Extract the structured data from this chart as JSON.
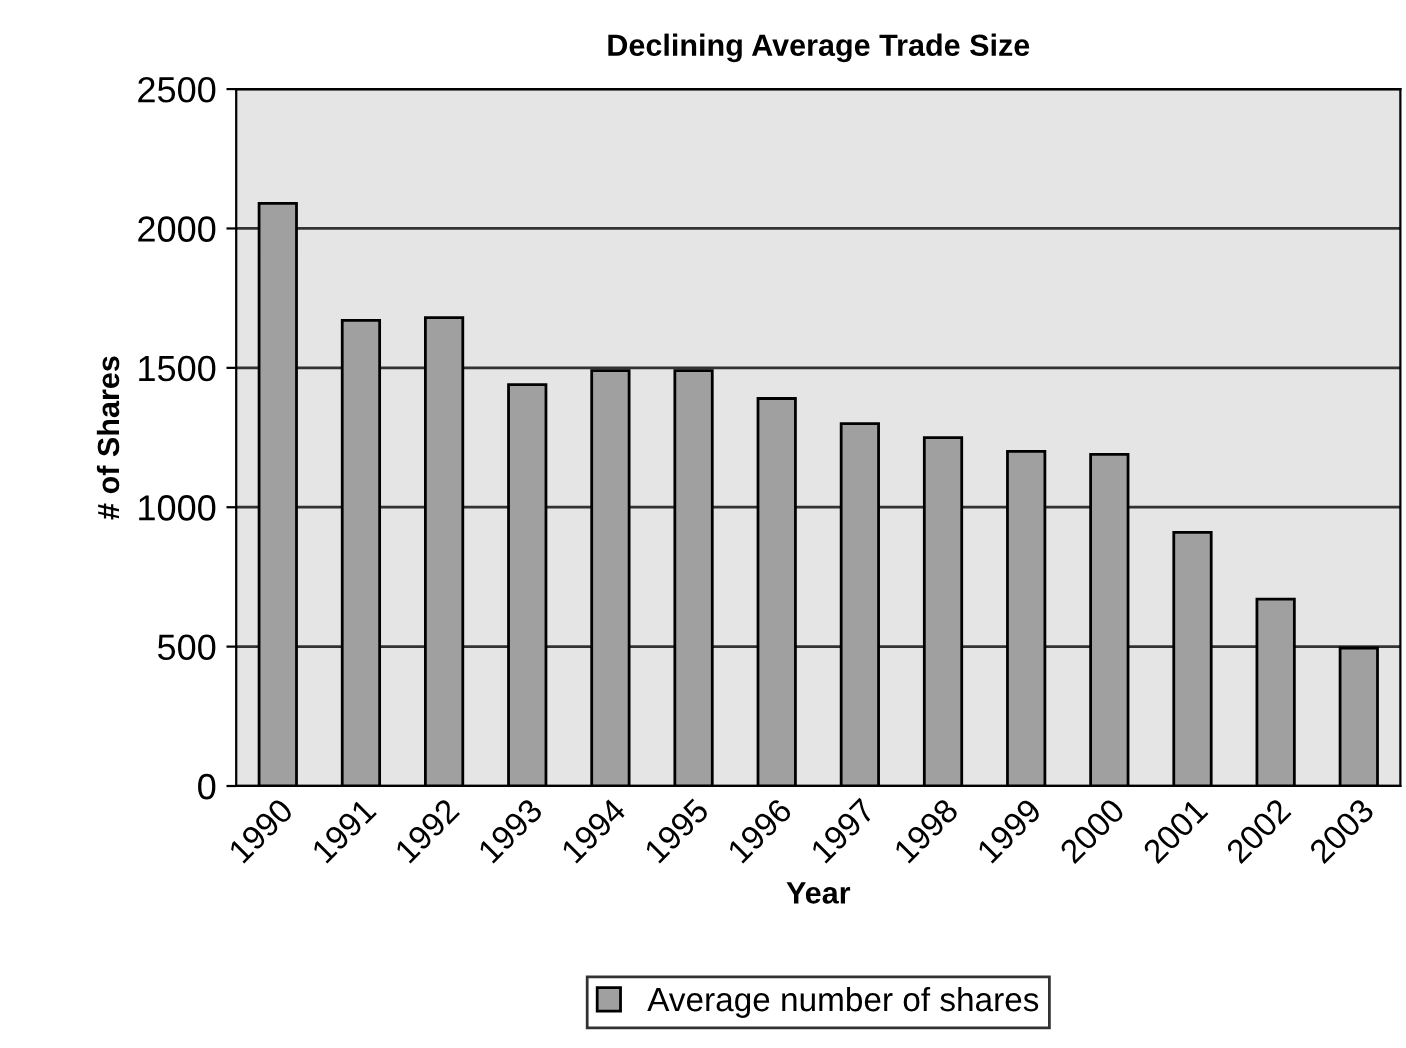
{
  "chart_data": {
    "type": "bar",
    "title": "Declining Average Trade Size",
    "xlabel": "Year",
    "ylabel": "# of Shares",
    "categories": [
      "1990",
      "1991",
      "1992",
      "1993",
      "1994",
      "1995",
      "1996",
      "1997",
      "1998",
      "1999",
      "2000",
      "2001",
      "2002",
      "2003"
    ],
    "series": [
      {
        "name": "Average number of shares",
        "color": "#a0a0a0",
        "values": [
          2090,
          1670,
          1680,
          1440,
          1490,
          1490,
          1390,
          1300,
          1250,
          1200,
          1190,
          910,
          670,
          495
        ]
      }
    ],
    "ylim": [
      0,
      2500
    ],
    "yticks": [
      0,
      500,
      1000,
      1500,
      2000,
      2500
    ],
    "grid": "y",
    "legend": "bottom"
  }
}
